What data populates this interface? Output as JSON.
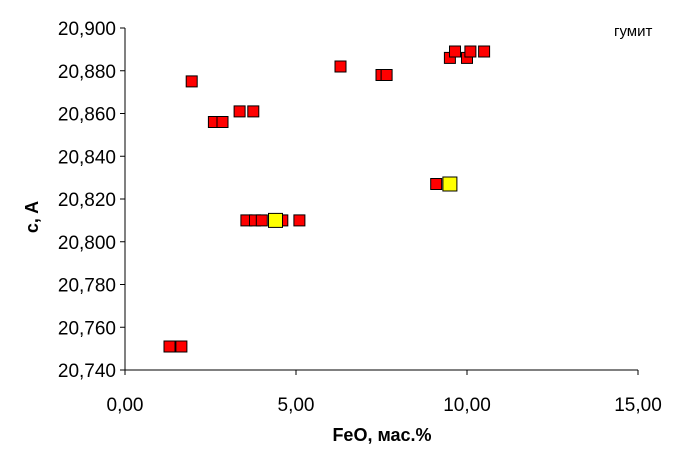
{
  "chart_data": {
    "type": "scatter",
    "title": "",
    "xlabel": "FeO, мас.%",
    "ylabel": "c, A",
    "annotation": "гумит",
    "xlim": [
      0,
      15
    ],
    "ylim": [
      20.74,
      20.9
    ],
    "x_ticks": [
      "0,00",
      "5,00",
      "10,00",
      "15,00"
    ],
    "y_ticks": [
      "20,740",
      "20,760",
      "20,780",
      "20,800",
      "20,820",
      "20,840",
      "20,860",
      "20,880",
      "20,900"
    ],
    "grid": false,
    "series": [
      {
        "color": "#ff0000",
        "points": [
          [
            1.3,
            20.751
          ],
          [
            1.65,
            20.751
          ],
          [
            1.95,
            20.875
          ],
          [
            2.6,
            20.856
          ],
          [
            2.85,
            20.856
          ],
          [
            3.35,
            20.861
          ],
          [
            3.75,
            20.861
          ],
          [
            3.55,
            20.81
          ],
          [
            3.8,
            20.81
          ],
          [
            4.0,
            20.81
          ],
          [
            4.6,
            20.81
          ],
          [
            5.1,
            20.81
          ],
          [
            6.3,
            20.882
          ],
          [
            7.5,
            20.878
          ],
          [
            7.65,
            20.878
          ],
          [
            9.1,
            20.827
          ],
          [
            9.5,
            20.886
          ],
          [
            9.65,
            20.889
          ],
          [
            10.0,
            20.886
          ],
          [
            10.1,
            20.889
          ],
          [
            10.5,
            20.889
          ]
        ]
      },
      {
        "color": "#ffff00",
        "points": [
          [
            4.4,
            20.81
          ],
          [
            9.5,
            20.827
          ]
        ]
      }
    ]
  }
}
